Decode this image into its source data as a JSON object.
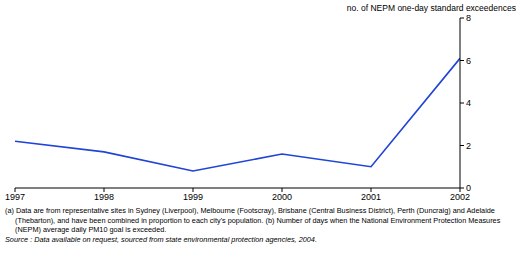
{
  "chart_data": {
    "type": "line",
    "y_label": "no. of NEPM one-day standard exceedences",
    "x": [
      1997,
      1998,
      1999,
      2000,
      2001,
      2002
    ],
    "values": [
      2.2,
      1.7,
      0.8,
      1.6,
      1.0,
      6.1
    ],
    "color": "#1f44d6",
    "xlim": [
      1997,
      2002
    ],
    "xticks": [
      1997,
      1998,
      1999,
      2000,
      2001,
      2002
    ],
    "ylim": [
      0,
      8
    ],
    "yticks": [
      0,
      2,
      4,
      6,
      8
    ],
    "grid": false,
    "notes": [
      "(a) Data are from representative sites in Sydney (Liverpool), Melbourne (Footscray), Brisbane (Central Business District), Perth (Duncraig) and Adelaide (Thebarton), and have been combined in proportion to each city's population. (b) Number of days when the National Environment Protection Measures (NEPM) average daily PM10 goal is exceeded."
    ],
    "source": "Source : Data available on request, sourced from state environmental protection agencies, 2004."
  }
}
